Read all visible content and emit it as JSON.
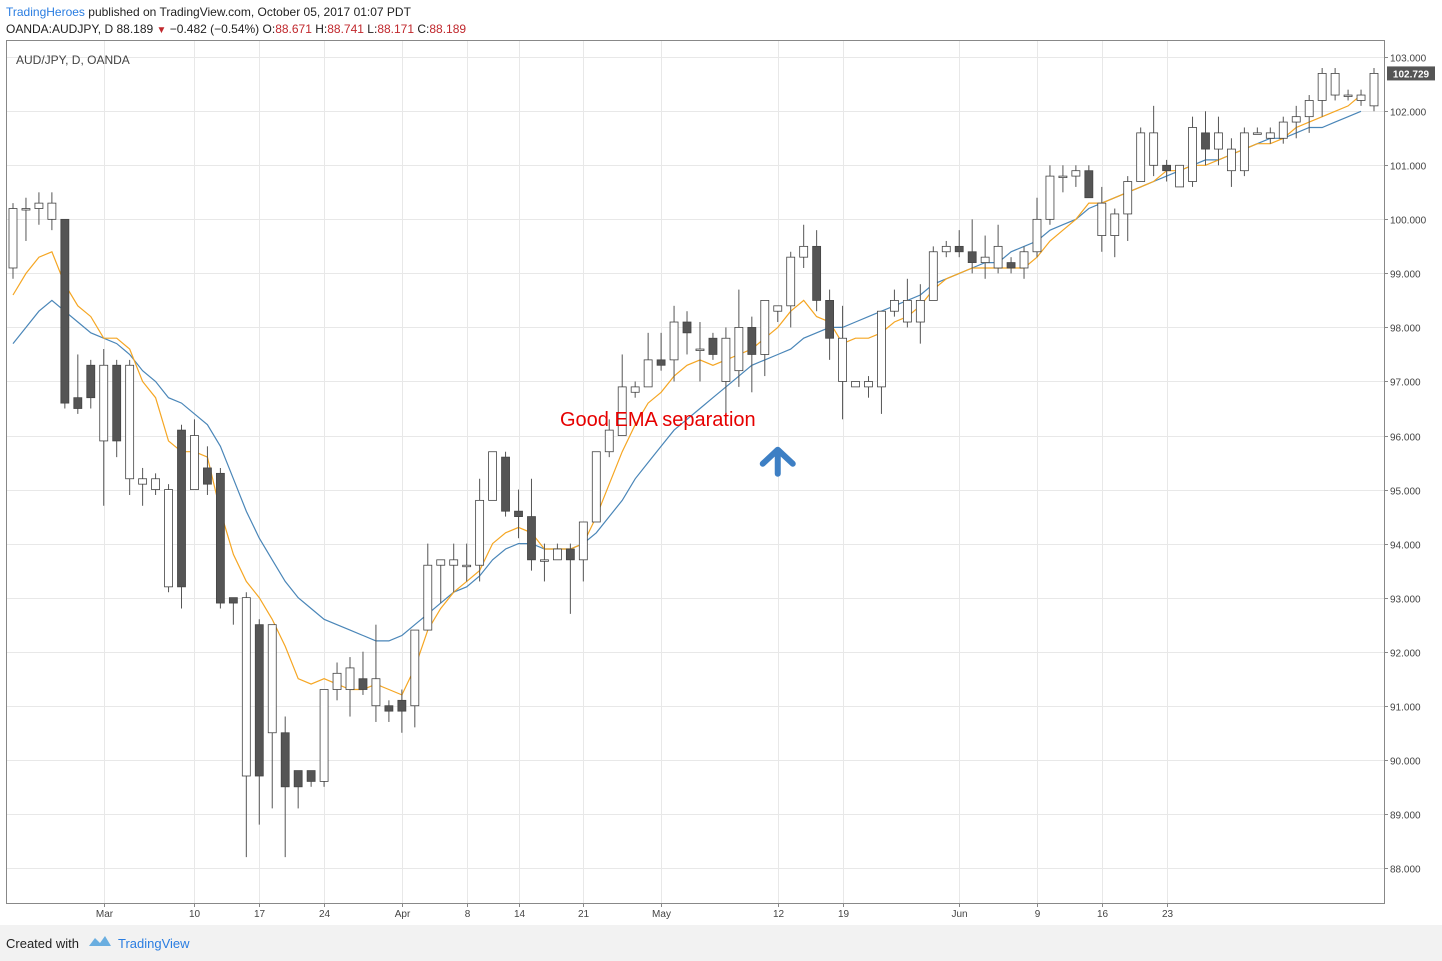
{
  "header": {
    "brand": "TradingHeroes",
    "published": "published on TradingView.com, October 05, 2017 01:07 PDT",
    "symbol": "OANDA:AUDJPY, D",
    "last": "88.189",
    "change": "−0.482 (−0.54%)",
    "o_label": "O:",
    "o_value": "88.671",
    "h_label": "H:",
    "h_value": "88.741",
    "l_label": "L:",
    "l_value": "88.171",
    "c_label": "C:",
    "c_value": "88.189"
  },
  "footer": {
    "created": "Created with",
    "brand": "TradingView"
  },
  "colors": {
    "ema_fast": "#f5a623",
    "ema_slow": "#4a86b8",
    "annotation": "#e60000",
    "arrow": "#3d7fc4",
    "bear_body": "#555555",
    "price_tag": "#555555"
  },
  "chart_data": {
    "type": "candlestick",
    "title": "AUD/JPY, D, OANDA",
    "annotation": "Good EMA separation",
    "annotation_anchor": {
      "x": "2017-05-12",
      "y": 95.7
    },
    "last_price_label": "102.729",
    "ylim": [
      87.35,
      103.3
    ],
    "yticks": [
      88,
      89,
      90,
      91,
      92,
      93,
      94,
      95,
      96,
      97,
      98,
      99,
      100,
      101,
      102,
      103
    ],
    "ytick_labels": [
      "88.000",
      "89.000",
      "90.000",
      "91.000",
      "92.000",
      "93.000",
      "94.000",
      "95.000",
      "96.000",
      "97.000",
      "98.000",
      "99.000",
      "100.000",
      "101.000",
      "102.000",
      "103.000"
    ],
    "xticks": [
      {
        "label": "Mar",
        "date": "2017-03-01"
      },
      {
        "label": "10",
        "date": "2017-03-10"
      },
      {
        "label": "17",
        "date": "2017-03-17"
      },
      {
        "label": "24",
        "date": "2017-03-24"
      },
      {
        "label": "Apr",
        "date": "2017-04-03"
      },
      {
        "label": "8",
        "date": "2017-04-08"
      },
      {
        "label": "14",
        "date": "2017-04-14"
      },
      {
        "label": "21",
        "date": "2017-04-21"
      },
      {
        "label": "May",
        "date": "2017-05-01"
      },
      {
        "label": "12",
        "date": "2017-05-12"
      },
      {
        "label": "19",
        "date": "2017-05-19"
      },
      {
        "label": "Jun",
        "date": "2017-06-01"
      },
      {
        "label": "9",
        "date": "2017-06-09"
      },
      {
        "label": "16",
        "date": "2017-06-16"
      },
      {
        "label": "23",
        "date": "2017-06-23"
      }
    ],
    "candles": [
      {
        "d": "2017-02-20",
        "o": 99.1,
        "h": 100.3,
        "l": 98.9,
        "c": 100.2
      },
      {
        "d": "2017-02-21",
        "o": 100.2,
        "h": 100.4,
        "l": 99.6,
        "c": 100.2
      },
      {
        "d": "2017-02-22",
        "o": 100.2,
        "h": 100.5,
        "l": 99.9,
        "c": 100.3
      },
      {
        "d": "2017-02-23",
        "o": 100.0,
        "h": 100.5,
        "l": 99.8,
        "c": 100.3
      },
      {
        "d": "2017-02-24",
        "o": 100.0,
        "h": 100.0,
        "l": 96.5,
        "c": 96.6
      },
      {
        "d": "2017-02-27",
        "o": 96.7,
        "h": 97.5,
        "l": 96.4,
        "c": 96.5
      },
      {
        "d": "2017-02-28",
        "o": 97.3,
        "h": 97.4,
        "l": 96.5,
        "c": 96.7
      },
      {
        "d": "2017-03-01",
        "o": 95.9,
        "h": 97.6,
        "l": 94.7,
        "c": 97.3
      },
      {
        "d": "2017-03-02",
        "o": 97.3,
        "h": 97.4,
        "l": 95.6,
        "c": 95.9
      },
      {
        "d": "2017-03-03",
        "o": 95.2,
        "h": 97.4,
        "l": 94.9,
        "c": 97.3
      },
      {
        "d": "2017-03-06",
        "o": 95.1,
        "h": 95.4,
        "l": 94.7,
        "c": 95.2
      },
      {
        "d": "2017-03-07",
        "o": 95.0,
        "h": 95.3,
        "l": 94.9,
        "c": 95.2
      },
      {
        "d": "2017-03-08",
        "o": 93.2,
        "h": 95.1,
        "l": 93.1,
        "c": 95.0
      },
      {
        "d": "2017-03-09",
        "o": 96.1,
        "h": 96.2,
        "l": 92.8,
        "c": 93.2
      },
      {
        "d": "2017-03-10",
        "o": 95.0,
        "h": 96.3,
        "l": 95.0,
        "c": 96.0
      },
      {
        "d": "2017-03-13",
        "o": 95.4,
        "h": 95.8,
        "l": 94.9,
        "c": 95.1
      },
      {
        "d": "2017-03-14",
        "o": 95.3,
        "h": 95.4,
        "l": 92.8,
        "c": 92.9
      },
      {
        "d": "2017-03-15",
        "o": 93.0,
        "h": 93.0,
        "l": 92.5,
        "c": 92.9
      },
      {
        "d": "2017-03-16",
        "o": 89.7,
        "h": 93.1,
        "l": 88.2,
        "c": 93.0
      },
      {
        "d": "2017-03-17",
        "o": 92.5,
        "h": 92.6,
        "l": 88.8,
        "c": 89.7
      },
      {
        "d": "2017-03-20",
        "o": 90.5,
        "h": 92.5,
        "l": 89.1,
        "c": 92.5
      },
      {
        "d": "2017-03-21",
        "o": 90.5,
        "h": 90.8,
        "l": 88.2,
        "c": 89.5
      },
      {
        "d": "2017-03-22",
        "o": 89.8,
        "h": 89.8,
        "l": 89.1,
        "c": 89.5
      },
      {
        "d": "2017-03-23",
        "o": 89.8,
        "h": 89.8,
        "l": 89.5,
        "c": 89.6
      },
      {
        "d": "2017-03-24",
        "o": 89.6,
        "h": 91.3,
        "l": 89.5,
        "c": 91.3
      },
      {
        "d": "2017-03-27",
        "o": 91.3,
        "h": 91.8,
        "l": 91.1,
        "c": 91.6
      },
      {
        "d": "2017-03-28",
        "o": 91.3,
        "h": 91.9,
        "l": 90.8,
        "c": 91.7
      },
      {
        "d": "2017-03-29",
        "o": 91.5,
        "h": 92.0,
        "l": 91.2,
        "c": 91.3
      },
      {
        "d": "2017-03-30",
        "o": 91.0,
        "h": 92.5,
        "l": 90.7,
        "c": 91.5
      },
      {
        "d": "2017-03-31",
        "o": 91.0,
        "h": 91.1,
        "l": 90.7,
        "c": 90.9
      },
      {
        "d": "2017-04-03",
        "o": 91.1,
        "h": 91.3,
        "l": 90.5,
        "c": 90.9
      },
      {
        "d": "2017-04-04",
        "o": 91.0,
        "h": 92.4,
        "l": 90.6,
        "c": 92.4
      },
      {
        "d": "2017-04-05",
        "o": 92.4,
        "h": 94.0,
        "l": 92.4,
        "c": 93.6
      },
      {
        "d": "2017-04-06",
        "o": 93.6,
        "h": 93.7,
        "l": 92.9,
        "c": 93.7
      },
      {
        "d": "2017-04-07",
        "o": 93.6,
        "h": 94.0,
        "l": 93.1,
        "c": 93.7
      },
      {
        "d": "2017-04-10",
        "o": 93.6,
        "h": 94.0,
        "l": 93.3,
        "c": 93.6
      },
      {
        "d": "2017-04-11",
        "o": 93.6,
        "h": 95.2,
        "l": 93.3,
        "c": 94.8
      },
      {
        "d": "2017-04-12",
        "o": 94.8,
        "h": 95.7,
        "l": 94.8,
        "c": 95.7
      },
      {
        "d": "2017-04-13",
        "o": 95.6,
        "h": 95.7,
        "l": 94.5,
        "c": 94.6
      },
      {
        "d": "2017-04-14",
        "o": 94.6,
        "h": 95.0,
        "l": 94.1,
        "c": 94.5
      },
      {
        "d": "2017-04-17",
        "o": 94.5,
        "h": 95.2,
        "l": 93.5,
        "c": 93.7
      },
      {
        "d": "2017-04-18",
        "o": 93.7,
        "h": 94.0,
        "l": 93.3,
        "c": 93.7
      },
      {
        "d": "2017-04-19",
        "o": 93.7,
        "h": 94.0,
        "l": 93.7,
        "c": 93.9
      },
      {
        "d": "2017-04-20",
        "o": 93.9,
        "h": 94.0,
        "l": 92.7,
        "c": 93.7
      },
      {
        "d": "2017-04-21",
        "o": 93.7,
        "h": 94.4,
        "l": 93.3,
        "c": 94.4
      },
      {
        "d": "2017-04-24",
        "o": 94.4,
        "h": 95.7,
        "l": 94.4,
        "c": 95.7
      },
      {
        "d": "2017-04-25",
        "o": 95.7,
        "h": 96.3,
        "l": 95.6,
        "c": 96.1
      },
      {
        "d": "2017-04-26",
        "o": 96.0,
        "h": 97.5,
        "l": 96.0,
        "c": 96.9
      },
      {
        "d": "2017-04-27",
        "o": 96.8,
        "h": 97.0,
        "l": 96.7,
        "c": 96.9
      },
      {
        "d": "2017-04-28",
        "o": 96.9,
        "h": 97.9,
        "l": 96.9,
        "c": 97.4
      },
      {
        "d": "2017-05-01",
        "o": 97.4,
        "h": 97.9,
        "l": 97.2,
        "c": 97.3
      },
      {
        "d": "2017-05-02",
        "o": 97.4,
        "h": 98.4,
        "l": 97.0,
        "c": 98.1
      },
      {
        "d": "2017-05-03",
        "o": 98.1,
        "h": 98.3,
        "l": 97.5,
        "c": 97.9
      },
      {
        "d": "2017-05-04",
        "o": 97.6,
        "h": 98.1,
        "l": 97.0,
        "c": 97.6
      },
      {
        "d": "2017-05-05",
        "o": 97.8,
        "h": 97.9,
        "l": 97.4,
        "c": 97.5
      },
      {
        "d": "2017-05-08",
        "o": 97.0,
        "h": 98.0,
        "l": 96.2,
        "c": 97.8
      },
      {
        "d": "2017-05-09",
        "o": 97.2,
        "h": 98.7,
        "l": 96.9,
        "c": 98.0
      },
      {
        "d": "2017-05-10",
        "o": 98.0,
        "h": 98.2,
        "l": 96.8,
        "c": 97.5
      },
      {
        "d": "2017-05-11",
        "o": 97.5,
        "h": 98.5,
        "l": 97.1,
        "c": 98.5
      },
      {
        "d": "2017-05-12",
        "o": 98.3,
        "h": 98.4,
        "l": 98.1,
        "c": 98.4
      },
      {
        "d": "2017-05-15",
        "o": 98.4,
        "h": 99.4,
        "l": 98.0,
        "c": 99.3
      },
      {
        "d": "2017-05-16",
        "o": 99.3,
        "h": 99.9,
        "l": 99.1,
        "c": 99.5
      },
      {
        "d": "2017-05-17",
        "o": 99.5,
        "h": 99.8,
        "l": 98.3,
        "c": 98.5
      },
      {
        "d": "2017-05-18",
        "o": 98.5,
        "h": 98.7,
        "l": 97.4,
        "c": 97.8
      },
      {
        "d": "2017-05-19",
        "o": 97.0,
        "h": 98.4,
        "l": 96.3,
        "c": 97.8
      },
      {
        "d": "2017-05-22",
        "o": 96.9,
        "h": 97.0,
        "l": 96.9,
        "c": 97.0
      },
      {
        "d": "2017-05-23",
        "o": 96.9,
        "h": 97.1,
        "l": 96.7,
        "c": 97.0
      },
      {
        "d": "2017-05-24",
        "o": 96.9,
        "h": 98.3,
        "l": 96.4,
        "c": 98.3
      },
      {
        "d": "2017-05-25",
        "o": 98.3,
        "h": 98.7,
        "l": 98.2,
        "c": 98.5
      },
      {
        "d": "2017-05-26",
        "o": 98.1,
        "h": 98.9,
        "l": 98.0,
        "c": 98.5
      },
      {
        "d": "2017-05-29",
        "o": 98.1,
        "h": 98.8,
        "l": 97.7,
        "c": 98.5
      },
      {
        "d": "2017-05-30",
        "o": 98.5,
        "h": 99.5,
        "l": 98.5,
        "c": 99.4
      },
      {
        "d": "2017-05-31",
        "o": 99.4,
        "h": 99.6,
        "l": 99.3,
        "c": 99.5
      },
      {
        "d": "2017-06-01",
        "o": 99.5,
        "h": 99.8,
        "l": 99.3,
        "c": 99.4
      },
      {
        "d": "2017-06-02",
        "o": 99.4,
        "h": 100.0,
        "l": 99.0,
        "c": 99.2
      },
      {
        "d": "2017-06-05",
        "o": 99.2,
        "h": 99.7,
        "l": 98.9,
        "c": 99.3
      },
      {
        "d": "2017-06-06",
        "o": 99.1,
        "h": 99.9,
        "l": 99.0,
        "c": 99.5
      },
      {
        "d": "2017-06-07",
        "o": 99.2,
        "h": 99.3,
        "l": 99.0,
        "c": 99.1
      },
      {
        "d": "2017-06-08",
        "o": 99.1,
        "h": 99.5,
        "l": 98.9,
        "c": 99.4
      },
      {
        "d": "2017-06-09",
        "o": 99.4,
        "h": 100.4,
        "l": 99.3,
        "c": 100.0
      },
      {
        "d": "2017-06-12",
        "o": 100.0,
        "h": 101.0,
        "l": 99.9,
        "c": 100.8
      },
      {
        "d": "2017-06-13",
        "o": 100.8,
        "h": 101.0,
        "l": 100.5,
        "c": 100.8
      },
      {
        "d": "2017-06-14",
        "o": 100.8,
        "h": 101.0,
        "l": 100.6,
        "c": 100.9
      },
      {
        "d": "2017-06-15",
        "o": 100.9,
        "h": 101.0,
        "l": 100.4,
        "c": 100.4
      },
      {
        "d": "2017-06-16",
        "o": 99.7,
        "h": 100.6,
        "l": 99.4,
        "c": 100.3
      },
      {
        "d": "2017-06-19",
        "o": 99.7,
        "h": 100.2,
        "l": 99.3,
        "c": 100.1
      },
      {
        "d": "2017-06-20",
        "o": 100.1,
        "h": 100.8,
        "l": 99.6,
        "c": 100.7
      },
      {
        "d": "2017-06-21",
        "o": 100.7,
        "h": 101.7,
        "l": 100.7,
        "c": 101.6
      },
      {
        "d": "2017-06-22",
        "o": 101.0,
        "h": 102.1,
        "l": 100.8,
        "c": 101.6
      },
      {
        "d": "2017-06-23",
        "o": 101.0,
        "h": 101.1,
        "l": 100.7,
        "c": 100.9
      },
      {
        "d": "2017-06-26",
        "o": 100.6,
        "h": 101.0,
        "l": 100.6,
        "c": 101.0
      },
      {
        "d": "2017-06-27",
        "o": 100.7,
        "h": 101.9,
        "l": 100.6,
        "c": 101.7
      },
      {
        "d": "2017-06-28",
        "o": 101.6,
        "h": 102.0,
        "l": 101.0,
        "c": 101.3
      },
      {
        "d": "2017-06-29",
        "o": 101.3,
        "h": 101.9,
        "l": 101.0,
        "c": 101.6
      },
      {
        "d": "2017-06-30",
        "o": 100.9,
        "h": 101.5,
        "l": 100.6,
        "c": 101.3
      },
      {
        "d": "2017-07-03",
        "o": 100.9,
        "h": 101.7,
        "l": 100.8,
        "c": 101.6
      },
      {
        "d": "2017-07-04",
        "o": 101.6,
        "h": 101.7,
        "l": 101.6,
        "c": 101.6
      },
      {
        "d": "2017-07-05",
        "o": 101.5,
        "h": 101.7,
        "l": 101.4,
        "c": 101.6
      },
      {
        "d": "2017-07-06",
        "o": 101.5,
        "h": 101.9,
        "l": 101.4,
        "c": 101.8
      },
      {
        "d": "2017-07-07",
        "o": 101.8,
        "h": 102.1,
        "l": 101.5,
        "c": 101.9
      },
      {
        "d": "2017-07-10",
        "o": 101.9,
        "h": 102.3,
        "l": 101.6,
        "c": 102.2
      },
      {
        "d": "2017-07-11",
        "o": 102.2,
        "h": 102.8,
        "l": 101.9,
        "c": 102.7
      },
      {
        "d": "2017-07-12",
        "o": 102.3,
        "h": 102.8,
        "l": 102.2,
        "c": 102.7
      },
      {
        "d": "2017-07-13",
        "o": 102.3,
        "h": 102.4,
        "l": 102.2,
        "c": 102.3
      },
      {
        "d": "2017-07-14",
        "o": 102.2,
        "h": 102.4,
        "l": 102.1,
        "c": 102.3
      },
      {
        "d": "2017-07-17",
        "o": 102.1,
        "h": 102.8,
        "l": 102.0,
        "c": 102.7
      }
    ],
    "ema_fast": [
      98.6,
      99.0,
      99.3,
      99.4,
      98.8,
      98.4,
      98.2,
      97.8,
      97.8,
      97.6,
      97.0,
      96.7,
      95.9,
      95.7,
      95.7,
      95.6,
      94.6,
      93.8,
      93.3,
      93.0,
      92.6,
      92.1,
      91.5,
      91.4,
      91.5,
      91.4,
      91.3,
      91.3,
      91.4,
      91.3,
      91.2,
      91.7,
      92.4,
      92.8,
      93.1,
      93.3,
      93.5,
      94.0,
      94.2,
      94.3,
      94.2,
      93.9,
      93.9,
      93.9,
      94.0,
      94.5,
      95.1,
      95.7,
      96.2,
      96.6,
      96.8,
      97.1,
      97.3,
      97.4,
      97.3,
      97.4,
      97.5,
      97.6,
      97.8,
      98.0,
      98.3,
      98.5,
      98.2,
      98.1,
      97.7,
      97.8,
      97.8,
      97.9,
      98.1,
      98.2,
      98.4,
      98.7,
      98.9,
      99.0,
      99.1,
      99.1,
      99.1,
      99.1,
      99.1,
      99.3,
      99.6,
      99.8,
      100.0,
      100.3,
      100.3,
      100.4,
      100.5,
      100.6,
      100.7,
      100.9,
      100.9,
      101.0,
      101.0,
      101.1,
      101.2,
      101.3,
      101.4,
      101.4,
      101.5,
      101.7,
      101.8,
      101.9,
      102.0,
      102.1,
      102.3
    ],
    "ema_slow": [
      97.7,
      98.0,
      98.3,
      98.5,
      98.3,
      98.1,
      97.9,
      97.8,
      97.7,
      97.5,
      97.2,
      97.0,
      96.7,
      96.6,
      96.4,
      96.2,
      95.8,
      95.2,
      94.6,
      94.1,
      93.7,
      93.3,
      93.0,
      92.8,
      92.6,
      92.5,
      92.4,
      92.3,
      92.2,
      92.2,
      92.3,
      92.5,
      92.7,
      92.9,
      93.1,
      93.2,
      93.4,
      93.7,
      93.9,
      94.0,
      94.0,
      93.9,
      93.9,
      93.9,
      94.0,
      94.2,
      94.5,
      94.8,
      95.2,
      95.5,
      95.8,
      96.1,
      96.3,
      96.5,
      96.7,
      96.9,
      97.1,
      97.3,
      97.4,
      97.5,
      97.6,
      97.8,
      97.9,
      98.0,
      98.0,
      98.1,
      98.2,
      98.3,
      98.4,
      98.5,
      98.6,
      98.8,
      98.9,
      99.0,
      99.1,
      99.2,
      99.2,
      99.4,
      99.5,
      99.6,
      99.8,
      99.9,
      100.0,
      100.2,
      100.3,
      100.4,
      100.5,
      100.6,
      100.7,
      100.8,
      100.9,
      101.0,
      101.1,
      101.1,
      101.2,
      101.3,
      101.4,
      101.5,
      101.5,
      101.6,
      101.7,
      101.7,
      101.8,
      101.9,
      102.0
    ]
  }
}
